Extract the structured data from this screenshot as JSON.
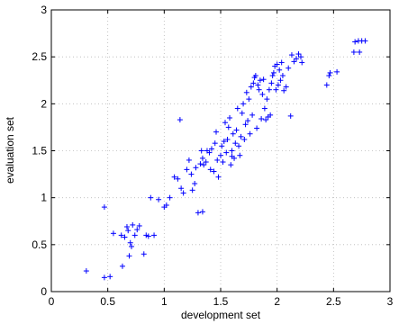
{
  "chart_data": {
    "type": "scatter",
    "title": "",
    "xlabel": "development set",
    "ylabel": "evaluation set",
    "xlim": [
      0,
      3
    ],
    "ylim": [
      0,
      3
    ],
    "xticks": [
      "0",
      "0.5",
      "1",
      "1.5",
      "2",
      "2.5",
      "3"
    ],
    "yticks": [
      "0",
      "0.5",
      "1",
      "1.5",
      "2",
      "2.5",
      "3"
    ],
    "grid": true,
    "marker": "+",
    "color": "#0000ff",
    "points": [
      [
        0.31,
        0.22
      ],
      [
        0.47,
        0.15
      ],
      [
        0.47,
        0.9
      ],
      [
        0.52,
        0.16
      ],
      [
        0.55,
        0.62
      ],
      [
        0.62,
        0.6
      ],
      [
        0.63,
        0.27
      ],
      [
        0.65,
        0.58
      ],
      [
        0.67,
        0.69
      ],
      [
        0.68,
        0.65
      ],
      [
        0.69,
        0.38
      ],
      [
        0.7,
        0.52
      ],
      [
        0.71,
        0.48
      ],
      [
        0.72,
        0.71
      ],
      [
        0.74,
        0.6
      ],
      [
        0.76,
        0.66
      ],
      [
        0.78,
        0.7
      ],
      [
        0.82,
        0.4
      ],
      [
        0.84,
        0.6
      ],
      [
        0.86,
        0.59
      ],
      [
        0.88,
        1.0
      ],
      [
        0.91,
        0.6
      ],
      [
        0.95,
        0.98
      ],
      [
        1.0,
        0.9
      ],
      [
        1.02,
        0.92
      ],
      [
        1.05,
        1.0
      ],
      [
        1.09,
        1.22
      ],
      [
        1.12,
        1.2
      ],
      [
        1.15,
        1.1
      ],
      [
        1.17,
        1.05
      ],
      [
        1.2,
        1.3
      ],
      [
        1.22,
        1.4
      ],
      [
        1.24,
        1.25
      ],
      [
        1.25,
        1.08
      ],
      [
        1.27,
        1.15
      ],
      [
        1.28,
        1.32
      ],
      [
        1.3,
        0.84
      ],
      [
        1.32,
        1.36
      ],
      [
        1.34,
        1.42
      ],
      [
        1.34,
        0.85
      ],
      [
        1.35,
        1.35
      ],
      [
        1.37,
        1.38
      ],
      [
        1.38,
        1.5
      ],
      [
        1.4,
        1.48
      ],
      [
        1.41,
        1.3
      ],
      [
        1.42,
        1.52
      ],
      [
        1.44,
        1.28
      ],
      [
        1.45,
        1.58
      ],
      [
        1.46,
        1.7
      ],
      [
        1.47,
        1.4
      ],
      [
        1.48,
        1.22
      ],
      [
        1.5,
        1.45
      ],
      [
        1.51,
        1.55
      ],
      [
        1.52,
        1.38
      ],
      [
        1.53,
        1.6
      ],
      [
        1.54,
        1.8
      ],
      [
        1.55,
        1.48
      ],
      [
        1.56,
        1.62
      ],
      [
        1.57,
        1.75
      ],
      [
        1.58,
        1.85
      ],
      [
        1.59,
        1.35
      ],
      [
        1.6,
        1.5
      ],
      [
        1.61,
        1.68
      ],
      [
        1.62,
        1.42
      ],
      [
        1.63,
        1.58
      ],
      [
        1.64,
        1.72
      ],
      [
        1.65,
        1.95
      ],
      [
        1.66,
        1.55
      ],
      [
        1.67,
        1.45
      ],
      [
        1.68,
        1.65
      ],
      [
        1.69,
        1.9
      ],
      [
        1.7,
        2.0
      ],
      [
        1.71,
        1.62
      ],
      [
        1.72,
        1.78
      ],
      [
        1.73,
        2.12
      ],
      [
        1.74,
        1.82
      ],
      [
        1.75,
        2.05
      ],
      [
        1.76,
        1.68
      ],
      [
        1.77,
        2.18
      ],
      [
        1.78,
        1.88
      ],
      [
        1.79,
        2.22
      ],
      [
        1.8,
        2.28
      ],
      [
        1.81,
        2.3
      ],
      [
        1.82,
        1.74
      ],
      [
        1.83,
        2.2
      ],
      [
        1.84,
        2.15
      ],
      [
        1.85,
        2.25
      ],
      [
        1.86,
        1.84
      ],
      [
        1.87,
        2.1
      ],
      [
        1.88,
        2.26
      ],
      [
        1.89,
        1.95
      ],
      [
        1.9,
        1.83
      ],
      [
        1.91,
        2.05
      ],
      [
        1.92,
        1.86
      ],
      [
        1.93,
        2.15
      ],
      [
        1.94,
        1.88
      ],
      [
        1.95,
        2.22
      ],
      [
        1.96,
        2.3
      ],
      [
        1.97,
        2.33
      ],
      [
        1.98,
        2.4
      ],
      [
        1.99,
        2.15
      ],
      [
        2.0,
        2.42
      ],
      [
        2.01,
        2.2
      ],
      [
        2.02,
        2.36
      ],
      [
        2.03,
        2.25
      ],
      [
        2.04,
        2.44
      ],
      [
        2.05,
        2.3
      ],
      [
        2.06,
        2.14
      ],
      [
        2.08,
        2.18
      ],
      [
        2.1,
        2.38
      ],
      [
        2.12,
        1.87
      ],
      [
        2.13,
        2.52
      ],
      [
        2.15,
        2.45
      ],
      [
        2.17,
        2.48
      ],
      [
        2.19,
        2.53
      ],
      [
        2.21,
        2.5
      ],
      [
        2.22,
        2.44
      ],
      [
        1.14,
        1.83
      ],
      [
        1.33,
        1.5
      ],
      [
        1.6,
        1.44
      ],
      [
        2.44,
        2.2
      ],
      [
        2.46,
        2.3
      ],
      [
        2.47,
        2.33
      ],
      [
        2.53,
        2.34
      ],
      [
        2.68,
        2.55
      ],
      [
        2.69,
        2.66
      ],
      [
        2.72,
        2.67
      ],
      [
        2.73,
        2.55
      ],
      [
        2.75,
        2.67
      ],
      [
        2.78,
        2.67
      ]
    ]
  }
}
